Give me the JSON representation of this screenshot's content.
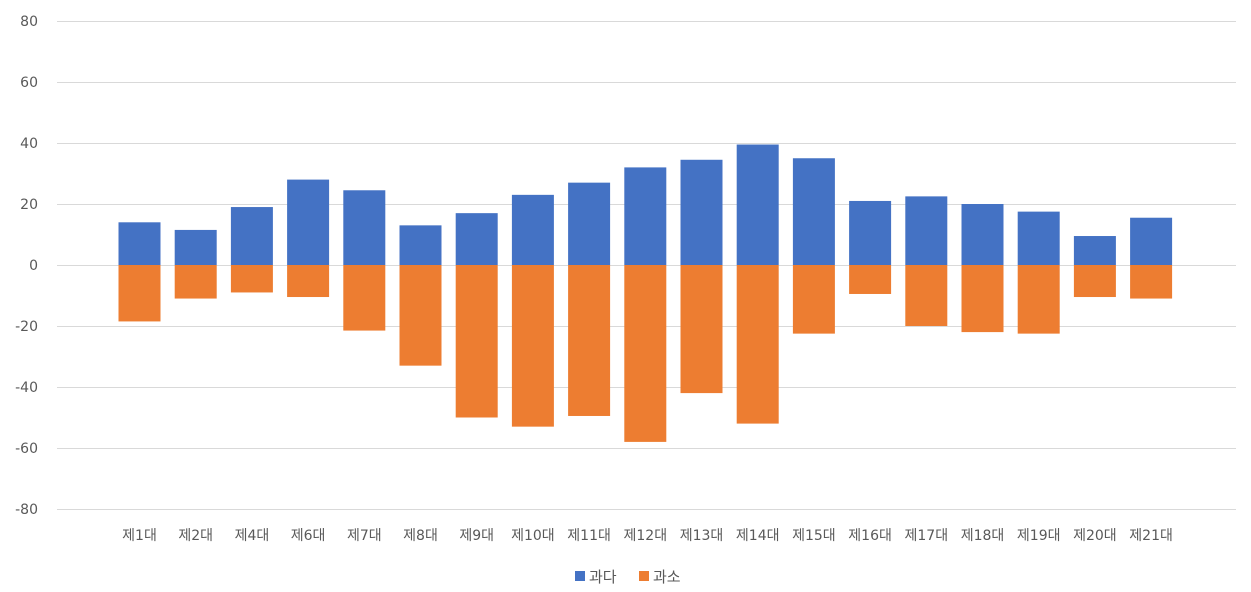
{
  "chart_data": {
    "type": "bar",
    "title": "",
    "xlabel": "",
    "ylabel": "",
    "ylim": [
      -80,
      80
    ],
    "yticks": [
      80,
      60,
      40,
      20,
      0,
      -20,
      -40,
      -60,
      -80
    ],
    "grid": true,
    "legend_position": "bottom",
    "categories": [
      "제1대",
      "제2대",
      "제4대",
      "제6대",
      "제7대",
      "제8대",
      "제9대",
      "제10대",
      "제11대",
      "제12대",
      "제13대",
      "제14대",
      "제15대",
      "제16대",
      "제17대",
      "제18대",
      "제19대",
      "제20대",
      "제21대"
    ],
    "series": [
      {
        "name": "과다",
        "color": "#4472C4",
        "values": [
          14,
          11.5,
          19,
          28,
          24.5,
          13,
          17,
          23,
          27,
          32,
          34.5,
          39.5,
          35,
          21,
          22.5,
          20,
          17.5,
          9.5,
          15.5
        ]
      },
      {
        "name": "과소",
        "color": "#ED7D31",
        "values": [
          -18.5,
          -11,
          -9,
          -10.5,
          -21.5,
          -33,
          -50,
          -53,
          -49.5,
          -58,
          -42,
          -52,
          -22.5,
          -9.5,
          -20,
          -22,
          -22.5,
          -10.5,
          -11
        ]
      }
    ]
  }
}
